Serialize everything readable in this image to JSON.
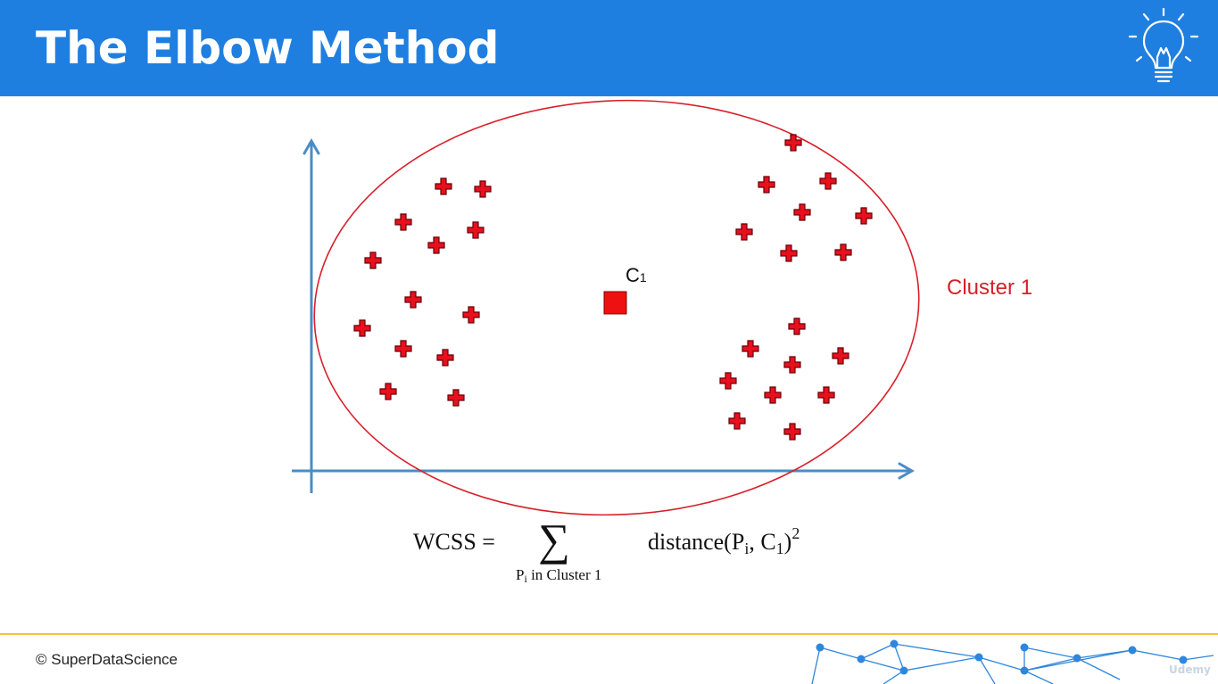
{
  "header": {
    "title": "The Elbow Method",
    "icon": "lightbulb-icon",
    "background_color": "#1f7fe0"
  },
  "diagram": {
    "centroid_label": "C",
    "centroid_subscript": "1",
    "cluster_label": "Cluster 1",
    "point_color": "#e8101c",
    "ellipse_color": "#d81f2a",
    "axis_color": "#4a8cc6",
    "formula": {
      "lhs": "WCSS =",
      "sum_symbol": "∑",
      "subscript": "Pi in Cluster 1",
      "subscript_p": "P",
      "subscript_i": "i",
      "subscript_rest": " in Cluster 1",
      "term_prefix": "distance(P",
      "term_i": "i",
      "term_mid": ", C",
      "term_one": "1",
      "term_close": ")",
      "exponent": "2"
    }
  },
  "footer": {
    "copyright": "© SuperDataScience",
    "watermark": "Udemy"
  }
}
